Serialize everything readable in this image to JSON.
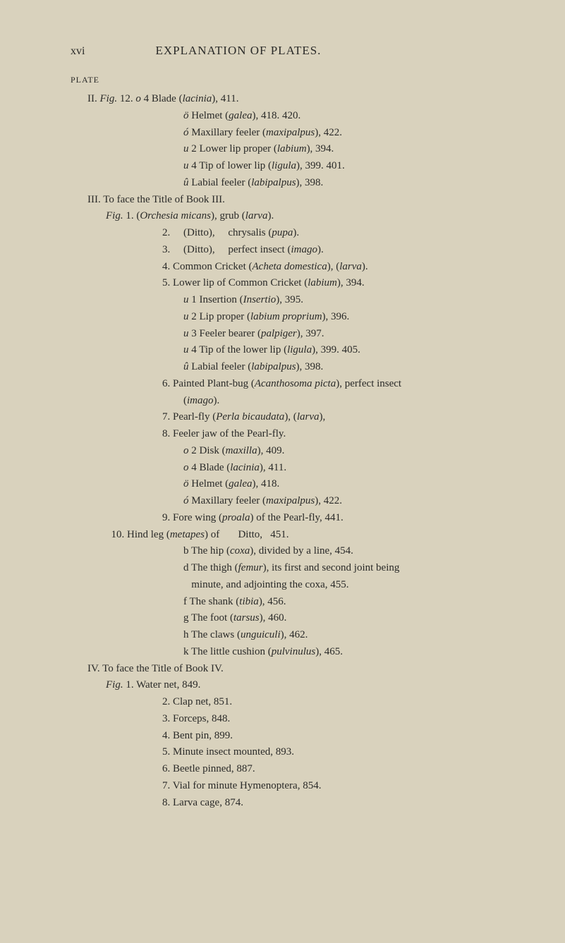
{
  "page_number": "xvi",
  "title": "EXPLANATION OF PLATES.",
  "plate_label": "PLATE",
  "lines": [
    {
      "cls": "entry",
      "html": "II. <em>Fig.</em> 12. <em>o</em> 4 Blade (<em>lacinia</em>), 411."
    },
    {
      "cls": "indent3",
      "html": "<em>ö</em> Helmet (<em>galea</em>), 418. 420."
    },
    {
      "cls": "indent3",
      "html": "<em>ó</em> Maxillary feeler (<em>maxipalpus</em>), 422."
    },
    {
      "cls": "indent3",
      "html": "<em>u</em> 2 Lower lip proper (<em>labium</em>), 394."
    },
    {
      "cls": "indent3",
      "html": "<em>u</em> 4 Tip of lower lip (<em>ligula</em>), 399. 401."
    },
    {
      "cls": "indent3",
      "html": "<em>û</em> Labial feeler (<em>labipalpus</em>), 398."
    },
    {
      "cls": "entry",
      "html": "III. To face the Title of Book III."
    },
    {
      "cls": "indent1",
      "html": "<em>Fig.</em> 1. (<em>Orchesia micans</em>), grub (<em>larva</em>)."
    },
    {
      "cls": "indent2",
      "html": "2. &nbsp;&nbsp;&nbsp;&nbsp;(Ditto), &nbsp;&nbsp;&nbsp;&nbsp;chrysalis (<em>pupa</em>)."
    },
    {
      "cls": "indent2",
      "html": "3. &nbsp;&nbsp;&nbsp;&nbsp;(Ditto), &nbsp;&nbsp;&nbsp;&nbsp;perfect insect (<em>imago</em>)."
    },
    {
      "cls": "indent2",
      "html": "4. Common Cricket (<em>Acheta domestica</em>), (<em>larva</em>)."
    },
    {
      "cls": "indent2",
      "html": "5. Lower lip of Common Cricket (<em>labium</em>), 394."
    },
    {
      "cls": "indent3",
      "html": "<em>u</em> 1 Insertion (<em>Insertio</em>), 395."
    },
    {
      "cls": "indent3",
      "html": "<em>u</em> 2 Lip proper (<em>labium proprium</em>), 396."
    },
    {
      "cls": "indent3",
      "html": "<em>u</em> 3 Feeler bearer (<em>palpiger</em>), 397."
    },
    {
      "cls": "indent3",
      "html": "<em>u</em> 4 Tip of the lower lip (<em>ligula</em>), 399. 405."
    },
    {
      "cls": "indent3",
      "html": "<em>û</em> Labial feeler (<em>labipalpus</em>), 398."
    },
    {
      "cls": "indent2",
      "html": "6. Painted Plant-bug (<em>Acanthosoma picta</em>), perfect insect"
    },
    {
      "cls": "indent3",
      "html": "(<em>imago</em>)."
    },
    {
      "cls": "indent2",
      "html": "7. Pearl-fly (<em>Perla bicaudata</em>), (<em>larva</em>),"
    },
    {
      "cls": "indent2",
      "html": "8. Feeler jaw of the Pearl-fly."
    },
    {
      "cls": "indent3",
      "html": "<em>o</em> 2 Disk (<em>maxilla</em>), 409."
    },
    {
      "cls": "indent3",
      "html": "<em>o</em> 4 Blade (<em>lacinia</em>), 411."
    },
    {
      "cls": "indent3",
      "html": "<em>ö</em> Helmet (<em>galea</em>), 418."
    },
    {
      "cls": "indent3",
      "html": "<em>ó</em> Maxillary feeler (<em>maxipalpus</em>), 422."
    },
    {
      "cls": "indent2",
      "html": "9. Fore wing (<em>proala</em>) of the Pearl-fly, 441."
    },
    {
      "cls": "indent1",
      "html": "&nbsp;&nbsp;10. Hind leg (<em>metapes</em>) of &nbsp;&nbsp;&nbsp;&nbsp;&nbsp;&nbsp;Ditto, &nbsp;&nbsp;451."
    },
    {
      "cls": "indent3",
      "html": "b The hip (<em>coxa</em>), divided by a line, 454."
    },
    {
      "cls": "indent3",
      "html": "d The thigh (<em>femur</em>), its first and second joint being"
    },
    {
      "cls": "indent3",
      "html": "&nbsp;&nbsp;&nbsp;minute, and adjointing the coxa, 455."
    },
    {
      "cls": "indent3",
      "html": "f The shank (<em>tibia</em>), 456."
    },
    {
      "cls": "indent3",
      "html": "g The foot (<em>tarsus</em>), 460."
    },
    {
      "cls": "indent3",
      "html": "h The claws (<em>unguiculi</em>), 462."
    },
    {
      "cls": "indent3",
      "html": "k The little cushion (<em>pulvinulus</em>), 465."
    },
    {
      "cls": "entry",
      "html": "IV. To face the Title of Book IV."
    },
    {
      "cls": "indent1",
      "html": "<em>Fig.</em> 1. Water net, 849."
    },
    {
      "cls": "indent2",
      "html": "2. Clap net, 851."
    },
    {
      "cls": "indent2",
      "html": "3. Forceps, 848."
    },
    {
      "cls": "indent2",
      "html": "4. Bent pin, 899."
    },
    {
      "cls": "indent2",
      "html": "5. Minute insect mounted, 893."
    },
    {
      "cls": "indent2",
      "html": "6. Beetle pinned, 887."
    },
    {
      "cls": "indent2",
      "html": "7. Vial for minute Hymenoptera, 854."
    },
    {
      "cls": "indent2",
      "html": "8. Larva cage, 874."
    }
  ]
}
